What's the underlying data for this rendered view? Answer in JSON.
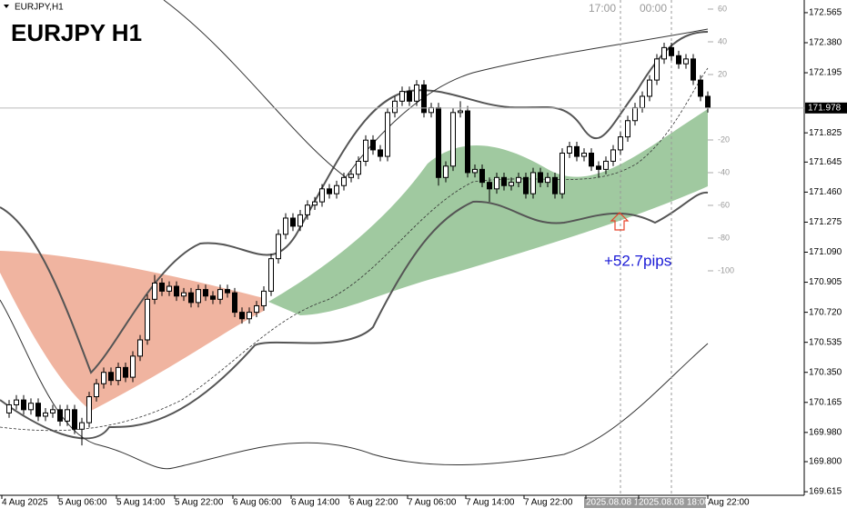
{
  "chart_data": {
    "type": "candlestick",
    "title": "EURJPY H1",
    "symbol_label": "EURJPY,H1",
    "annotation": "+52.7pips",
    "session_labels": [
      "17:00",
      "00:00"
    ],
    "oscillator_labels": [
      60,
      40,
      20,
      -20,
      -40,
      -60,
      -80,
      -100
    ],
    "open": [
      170.1,
      170.15,
      170.18,
      170.12,
      170.16,
      170.08,
      170.1,
      170.12,
      170.05,
      170.12,
      170.0,
      170.04,
      170.2,
      170.28,
      170.35,
      170.3,
      170.38,
      170.32,
      170.45,
      170.55,
      170.8,
      170.9,
      170.85,
      170.88,
      170.82,
      170.84,
      170.78,
      170.86,
      170.82,
      170.8,
      170.86,
      170.84,
      170.72,
      170.68,
      170.72,
      170.76,
      170.85,
      171.05,
      171.2,
      171.3,
      171.25,
      171.32,
      171.38,
      171.4,
      171.48,
      171.45,
      171.5,
      171.55,
      171.57,
      171.65,
      171.78,
      171.72,
      171.68,
      171.95,
      172.02,
      172.08,
      172.02,
      172.12,
      171.95,
      171.98,
      171.55,
      171.62,
      171.95,
      171.96,
      171.58,
      171.6,
      171.52,
      171.48,
      171.55,
      171.5,
      171.52,
      171.55,
      171.45,
      171.58,
      171.52,
      171.55,
      171.45,
      171.7,
      171.74,
      171.68,
      171.7,
      171.62,
      171.6,
      171.65,
      171.72,
      171.8,
      171.9,
      171.98,
      172.05,
      172.15,
      172.28,
      172.35,
      172.3,
      172.25,
      172.28,
      172.15,
      172.05
    ],
    "high": [
      170.18,
      170.21,
      170.21,
      170.19,
      170.19,
      170.13,
      170.15,
      170.15,
      170.15,
      170.15,
      170.07,
      170.23,
      170.31,
      170.38,
      170.38,
      170.41,
      170.41,
      170.48,
      170.58,
      170.83,
      170.95,
      170.93,
      170.91,
      170.91,
      170.87,
      170.87,
      170.89,
      170.89,
      170.85,
      170.89,
      170.89,
      170.87,
      170.75,
      170.75,
      170.79,
      170.88,
      171.08,
      171.23,
      171.33,
      171.33,
      171.35,
      171.41,
      171.43,
      171.51,
      171.51,
      171.53,
      171.58,
      171.6,
      171.68,
      171.81,
      171.81,
      171.75,
      171.98,
      172.05,
      172.11,
      172.11,
      172.15,
      172.15,
      172.01,
      172.01,
      171.65,
      171.98,
      172.02,
      171.99,
      171.63,
      171.63,
      171.55,
      171.58,
      171.58,
      171.55,
      171.58,
      171.58,
      171.61,
      171.61,
      171.58,
      171.58,
      171.73,
      171.77,
      171.77,
      171.73,
      171.73,
      171.65,
      171.68,
      171.75,
      171.83,
      171.93,
      172.01,
      172.08,
      172.18,
      172.31,
      172.38,
      172.38,
      172.33,
      172.31,
      172.31,
      172.18,
      172.08
    ],
    "low": [
      170.07,
      170.12,
      170.09,
      170.09,
      170.05,
      170.05,
      170.07,
      170.02,
      170.02,
      169.97,
      169.9,
      170.01,
      170.17,
      170.25,
      170.27,
      170.27,
      170.29,
      170.29,
      170.42,
      170.52,
      170.77,
      170.82,
      170.82,
      170.79,
      170.79,
      170.75,
      170.75,
      170.79,
      170.77,
      170.77,
      170.81,
      170.69,
      170.65,
      170.65,
      170.69,
      170.73,
      170.82,
      171.02,
      171.17,
      171.22,
      171.22,
      171.29,
      171.35,
      171.37,
      171.42,
      171.42,
      171.47,
      171.52,
      171.54,
      171.62,
      171.69,
      171.65,
      171.65,
      171.92,
      171.99,
      171.99,
      171.99,
      171.92,
      171.92,
      171.5,
      171.52,
      171.59,
      171.92,
      171.55,
      171.55,
      171.49,
      171.4,
      171.45,
      171.47,
      171.47,
      171.49,
      171.42,
      171.42,
      171.49,
      171.49,
      171.42,
      171.42,
      171.67,
      171.65,
      171.65,
      171.59,
      171.55,
      171.57,
      171.62,
      171.69,
      171.77,
      171.87,
      171.95,
      172.02,
      172.12,
      172.25,
      172.27,
      172.22,
      172.22,
      172.12,
      172.02,
      171.95
    ],
    "close": [
      170.15,
      170.18,
      170.12,
      170.16,
      170.08,
      170.1,
      170.12,
      170.05,
      170.12,
      170.0,
      170.04,
      170.2,
      170.28,
      170.35,
      170.3,
      170.38,
      170.32,
      170.45,
      170.55,
      170.8,
      170.9,
      170.85,
      170.88,
      170.82,
      170.84,
      170.78,
      170.86,
      170.82,
      170.8,
      170.86,
      170.84,
      170.72,
      170.68,
      170.72,
      170.76,
      170.85,
      171.05,
      171.2,
      171.3,
      171.25,
      171.32,
      171.38,
      171.4,
      171.48,
      171.45,
      171.5,
      171.55,
      171.57,
      171.65,
      171.78,
      171.72,
      171.68,
      171.95,
      172.02,
      172.08,
      172.02,
      172.12,
      171.95,
      171.98,
      171.55,
      171.62,
      171.95,
      171.96,
      171.58,
      171.6,
      171.52,
      171.48,
      171.55,
      171.5,
      171.52,
      171.55,
      171.45,
      171.58,
      171.52,
      171.55,
      171.45,
      171.7,
      171.74,
      171.68,
      171.7,
      171.62,
      171.6,
      171.65,
      171.72,
      171.8,
      171.9,
      171.98,
      172.05,
      172.15,
      172.28,
      172.35,
      172.3,
      172.25,
      172.28,
      172.15,
      172.05,
      171.98
    ],
    "up_color": "#ffffff",
    "down_color": "#000000",
    "ylim": [
      169.593,
      172.643
    ],
    "yticks": [
      172.565,
      {
        "value": 172.38,
        "label": "172.380"
      },
      172.195,
      171.825,
      171.645,
      {
        "value": 171.46,
        "label": "171.460"
      },
      171.275,
      {
        "value": 171.09,
        "label": "171.090"
      },
      170.905,
      {
        "value": 170.72,
        "label": "170.720"
      },
      170.535,
      {
        "value": 170.35,
        "label": "170.350"
      },
      170.165,
      {
        "value": 169.98,
        "label": "169.980"
      },
      {
        "value": 169.8,
        "label": "169.800"
      },
      169.615
    ],
    "current_price": {
      "value": 171.978,
      "label": "171.978"
    },
    "x_tick_labels": [
      "4 Aug 2025",
      "5 Aug 06:00",
      "5 Aug 14:00",
      "5 Aug 22:00",
      "6 Aug 06:00",
      "6 Aug 14:00",
      "6 Aug 22:00",
      "7 Aug 06:00",
      "7 Aug 14:00",
      "7 Aug 22:00",
      "2025.08.08 1",
      "2025.08.08 18:00",
      "Aug 22:00"
    ]
  }
}
